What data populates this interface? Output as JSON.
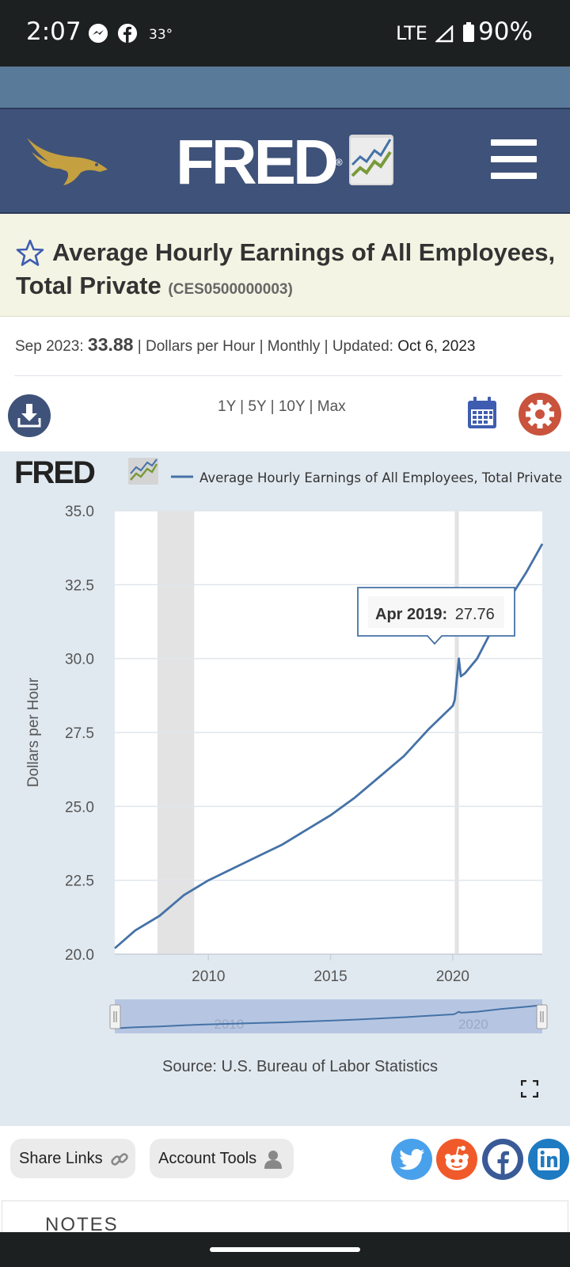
{
  "status_bar": {
    "time": "2:07",
    "temperature": "33°",
    "network": "LTE",
    "battery": "90%",
    "icons": [
      "messenger-icon",
      "facebook-icon",
      "signal-icon",
      "battery-icon"
    ]
  },
  "header": {
    "logo_text": "FRED",
    "logo_mark": "®",
    "icons": [
      "eagle-logo-icon",
      "fred-chart-icon",
      "menu-icon"
    ]
  },
  "series": {
    "title": "Average Hourly Earnings of All Employees, Total Private",
    "id": "(CES0500000003)",
    "latest_period": "Sep 2023:",
    "latest_value": "33.88",
    "units": "| Dollars per Hour | Monthly | Updated:",
    "updated": "Oct 6, 2023"
  },
  "ranges": [
    "1Y",
    "5Y",
    "10Y",
    "Max"
  ],
  "chart_brand": "FRED",
  "chart_data": {
    "type": "line",
    "legend_label": "Average Hourly Earnings of All Employees, Total Private",
    "legend_placement": "top",
    "ylabel": "Dollars per Hour",
    "ylim": [
      20.0,
      35.0
    ],
    "y_ticks": [
      "20.0",
      "22.5",
      "25.0",
      "27.5",
      "30.0",
      "32.5",
      "35.0"
    ],
    "x_ticks": [
      "2010",
      "2015",
      "2020"
    ],
    "xlim": [
      "2006-03",
      "2023-09"
    ],
    "grid": true,
    "recessions": [
      [
        "2007-12",
        "2009-06"
      ],
      [
        "2020-02",
        "2020-04"
      ]
    ],
    "series": [
      {
        "color": "#4572a7",
        "x": [
          "2006-03",
          "2007-01",
          "2008-01",
          "2009-01",
          "2010-01",
          "2011-01",
          "2012-01",
          "2013-01",
          "2014-01",
          "2015-01",
          "2016-01",
          "2017-01",
          "2018-01",
          "2019-01",
          "2020-01",
          "2020-02",
          "2020-04",
          "2020-05",
          "2020-07",
          "2021-01",
          "2022-01",
          "2023-01",
          "2023-09"
        ],
        "values": [
          20.2,
          20.8,
          21.3,
          22.0,
          22.5,
          22.9,
          23.3,
          23.7,
          24.2,
          24.7,
          25.3,
          26.0,
          26.7,
          27.6,
          28.4,
          28.6,
          30.0,
          29.4,
          29.5,
          30.0,
          31.6,
          32.9,
          33.88
        ]
      }
    ],
    "tooltip": {
      "label": "Apr 2019:",
      "value": "27.76"
    },
    "navigator_ticks": [
      "2010",
      "2020"
    ],
    "source": "Source: U.S. Bureau of Labor Statistics"
  },
  "share": {
    "share_links": "Share Links",
    "account_tools": "Account Tools",
    "social": [
      {
        "name": "twitter",
        "color": "#4aa1eb"
      },
      {
        "name": "reddit",
        "color": "#f05a2a"
      },
      {
        "name": "facebook",
        "color": "#3a5a97"
      },
      {
        "name": "linkedin",
        "color": "#1f7bc1"
      }
    ]
  },
  "notes_heading": "NOTES"
}
